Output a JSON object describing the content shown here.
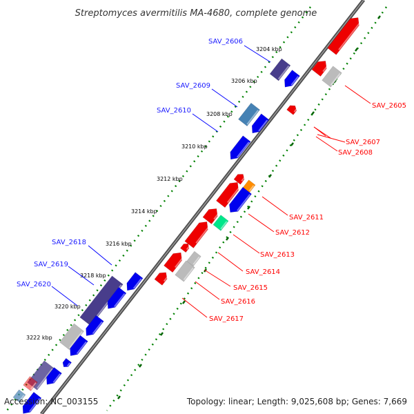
{
  "title": "Streptomyces avermitilis MA-4680, complete genome",
  "accession": "Accession: NC_003155",
  "summary": "Topology: linear; Length: 9,025,608 bp; Genes: 7,669",
  "ticks": [
    "3204 kbp",
    "3206 kbp",
    "3208 kbp",
    "3210 kbp",
    "3212 kbp",
    "3214 kbp",
    "3216 kbp",
    "3218 kbp",
    "3220 kbp",
    "3222 kbp"
  ],
  "forward_genes": [
    "SAV_2606",
    "SAV_2609",
    "SAV_2610",
    "SAV_2618",
    "SAV_2619",
    "SAV_2620"
  ],
  "reverse_genes": [
    "SAV_2605",
    "SAV_2607",
    "SAV_2608",
    "SAV_2611",
    "SAV_2612",
    "SAV_2613",
    "SAV_2614",
    "SAV_2615",
    "SAV_2616",
    "SAV_2617"
  ],
  "colors": {
    "forward": "#0000ee",
    "reverse": "#ee0000",
    "grey": "#bbbbbb",
    "purple": "#483d8b",
    "steel": "#4682b4",
    "orange": "#ff8c00",
    "teal": "#00e68a",
    "backbone": "#666666",
    "dots": "#008000"
  }
}
